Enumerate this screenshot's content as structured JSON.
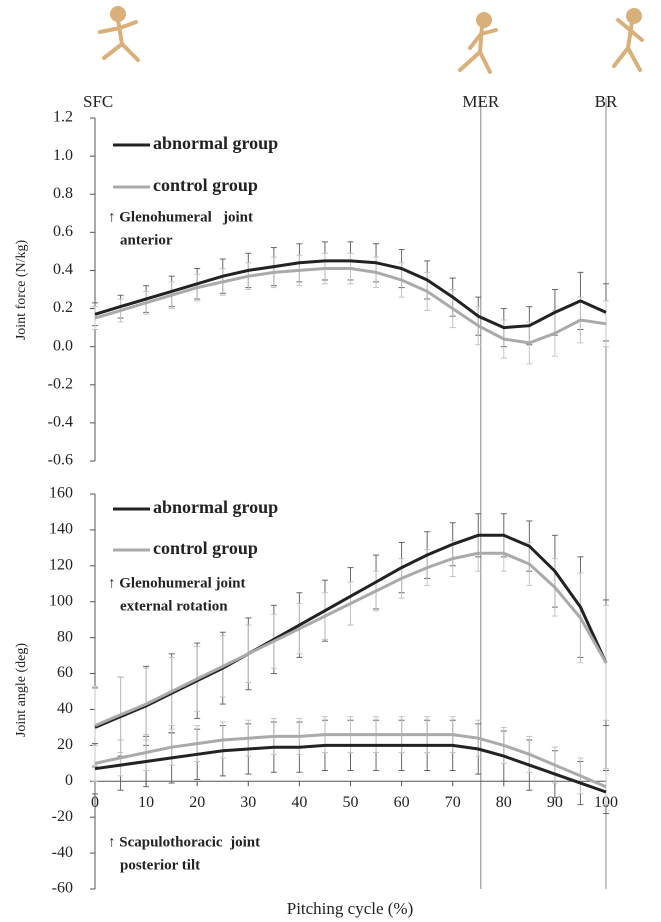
{
  "chart_data": [
    {
      "type": "line",
      "y_label": "Joint force (N/kg)",
      "x": [
        0,
        5,
        10,
        15,
        20,
        25,
        30,
        35,
        40,
        45,
        50,
        55,
        60,
        65,
        70,
        75,
        80,
        85,
        90,
        95,
        100
      ],
      "xlim": [
        0,
        100
      ],
      "ylim": [
        -0.6,
        1.2
      ],
      "yticks": [
        -0.6,
        -0.4,
        -0.2,
        {
          "value": 0,
          "label": "0.0"
        },
        0.2,
        0.4,
        0.6,
        0.8,
        {
          "value": 1,
          "label": "1.0"
        },
        1.2
      ],
      "events": [
        {
          "label": "SFC",
          "x": 0
        },
        {
          "label": "MER",
          "x": 75.5
        },
        {
          "label": "BR",
          "x": 100
        }
      ],
      "series": [
        {
          "name": "abnormal group",
          "color": "#222222",
          "values": [
            0.17,
            0.21,
            0.25,
            0.29,
            0.33,
            0.37,
            0.4,
            0.42,
            0.44,
            0.45,
            0.45,
            0.44,
            0.41,
            0.35,
            0.26,
            0.16,
            0.1,
            0.11,
            0.18,
            0.24,
            0.18
          ],
          "errors": [
            0.06,
            0.06,
            0.07,
            0.08,
            0.08,
            0.09,
            0.09,
            0.1,
            0.1,
            0.1,
            0.1,
            0.1,
            0.1,
            0.1,
            0.1,
            0.1,
            0.1,
            0.1,
            0.12,
            0.15,
            0.15
          ]
        },
        {
          "name": "control group",
          "color": "#aaaaaa",
          "values": [
            0.15,
            0.19,
            0.23,
            0.27,
            0.31,
            0.34,
            0.37,
            0.39,
            0.4,
            0.41,
            0.41,
            0.39,
            0.35,
            0.29,
            0.2,
            0.11,
            0.04,
            0.02,
            0.07,
            0.14,
            0.12
          ],
          "errors": [
            0.06,
            0.06,
            0.06,
            0.07,
            0.07,
            0.07,
            0.07,
            0.08,
            0.08,
            0.08,
            0.08,
            0.08,
            0.09,
            0.1,
            0.1,
            0.1,
            0.1,
            0.11,
            0.12,
            0.12,
            0.12
          ]
        }
      ],
      "annotations": [
        [
          "↑ Glenohumeral   joint",
          "anterior"
        ]
      ]
    },
    {
      "type": "line",
      "y_label": "Joint angle (deg)",
      "x_label": "Pitching cycle (%)",
      "x": [
        0,
        5,
        10,
        15,
        20,
        25,
        30,
        35,
        40,
        45,
        50,
        55,
        60,
        65,
        70,
        75,
        80,
        85,
        90,
        95,
        100
      ],
      "xlim": [
        0,
        100
      ],
      "xticks": [
        0,
        10,
        20,
        30,
        40,
        50,
        60,
        70,
        80,
        90,
        100
      ],
      "ylim": [
        -60,
        160
      ],
      "yticks": [
        -60,
        -40,
        -20,
        0,
        20,
        40,
        60,
        80,
        100,
        120,
        140,
        160
      ],
      "series": [
        {
          "name": "abnormal group",
          "color": "#222222",
          "values": [
            30,
            36,
            42,
            49,
            56,
            63,
            71,
            79,
            87,
            95,
            103,
            111,
            119,
            126,
            132,
            137,
            137,
            131,
            117,
            97,
            66
          ],
          "errors": [
            22,
            22,
            22,
            22,
            21,
            20,
            20,
            19,
            18,
            17,
            16,
            15,
            14,
            13,
            12,
            12,
            12,
            14,
            20,
            28,
            35
          ]
        },
        {
          "name": "control group",
          "color": "#aaaaaa",
          "values": [
            31,
            37,
            43,
            50,
            57,
            64,
            71,
            78,
            85,
            92,
            99,
            106,
            113,
            119,
            124,
            127,
            127,
            121,
            108,
            91,
            66
          ],
          "errors": [
            22,
            21,
            20,
            19,
            18,
            17,
            16,
            15,
            14,
            13,
            12,
            11,
            11,
            10,
            10,
            10,
            10,
            12,
            16,
            25,
            32
          ]
        },
        {
          "color": "#222222",
          "values": [
            7,
            9,
            11,
            13,
            15,
            17,
            18,
            19,
            19,
            20,
            20,
            20,
            20,
            20,
            20,
            18,
            14,
            9,
            4,
            -1,
            -6
          ],
          "errors": [
            14,
            14,
            14,
            14,
            14,
            14,
            14,
            14,
            14,
            14,
            14,
            14,
            14,
            14,
            14,
            14,
            14,
            14,
            13,
            12,
            12
          ]
        },
        {
          "color": "#aaaaaa",
          "values": [
            10,
            13,
            16,
            19,
            21,
            23,
            24,
            25,
            25,
            26,
            26,
            26,
            26,
            26,
            26,
            24,
            20,
            15,
            9,
            3,
            -3
          ],
          "errors": [
            10,
            10,
            10,
            10,
            10,
            10,
            10,
            10,
            10,
            10,
            10,
            10,
            10,
            10,
            10,
            10,
            10,
            10,
            10,
            10,
            10
          ]
        }
      ],
      "annotations": [
        [
          "↑ Glenohumeral joint",
          "external rotation"
        ],
        [
          "↑ Scapulothoracic  joint",
          "posterior tilt"
        ]
      ]
    }
  ]
}
